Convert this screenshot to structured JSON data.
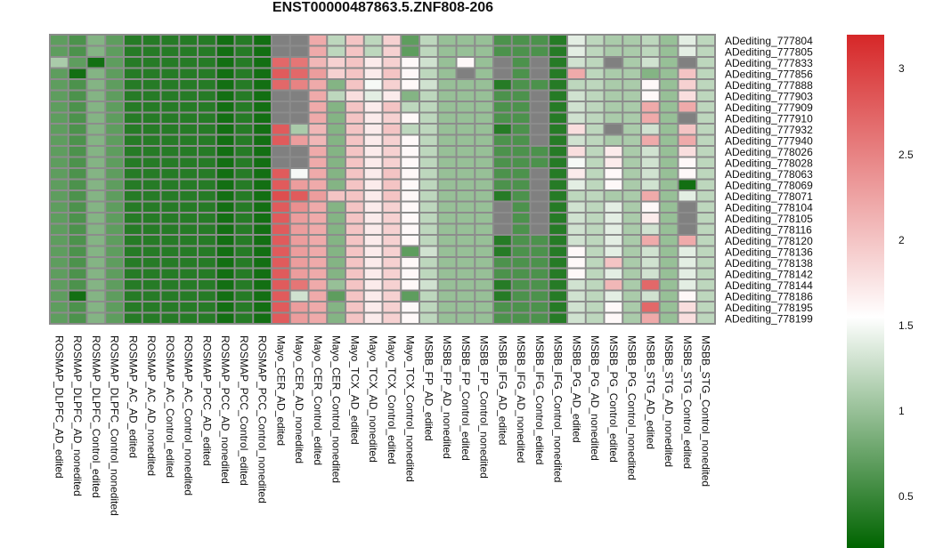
{
  "title": "ENST00000487863.5.ZNF808-206",
  "chart_data": {
    "type": "heatmap",
    "title": "ENST00000487863.5.ZNF808-206",
    "columns": [
      "ROSMAP_DLPFC_AD_edited",
      "ROSMAP_DLPFC_AD_nonedited",
      "ROSMAP_DLPFC_Control_edited",
      "ROSMAP_DLPFC_Control_nonedited",
      "ROSMAP_AC_AD_edited",
      "ROSMAP_AC_AD_nonedited",
      "ROSMAP_AC_Control_edited",
      "ROSMAP_AC_Control_nonedited",
      "ROSMAP_PCC_AD_edited",
      "ROSMAP_PCC_AD_nonedited",
      "ROSMAP_PCC_Control_edited",
      "ROSMAP_PCC_Control_nonedited",
      "Mayo_CER_AD_edited",
      "Mayo_CER_AD_nonedited",
      "Mayo_CER_Control_edited",
      "Mayo_CER_Control_nonedited",
      "Mayo_TCX_AD_edited",
      "Mayo_TCX_AD_nonedited",
      "Mayo_TCX_Control_edited",
      "Mayo_TCX_Control_nonedited",
      "MSBB_FP_AD_edited",
      "MSBB_FP_AD_nonedited",
      "MSBB_FP_Control_edited",
      "MSBB_FP_Control_nonedited",
      "MSBB_IFG_AD_edited",
      "MSBB_IFG_AD_nonedited",
      "MSBB_IFG_Control_edited",
      "MSBB_IFG_Control_nonedited",
      "MSBB_PG_AD_edited",
      "MSBB_PG_AD_nonedited",
      "MSBB_PG_Control_edited",
      "MSBB_PG_Control_nonedited",
      "MSBB_STG_AD_edited",
      "MSBB_STG_AD_nonedited",
      "MSBB_STG_Control_edited",
      "MSBB_STG_Control_nonedited"
    ],
    "rows": [
      "ADediting_777804",
      "ADediting_777805",
      "ADediting_777833",
      "ADediting_777856",
      "ADediting_777888",
      "ADediting_777903",
      "ADediting_777909",
      "ADediting_777910",
      "ADediting_777932",
      "ADediting_777940",
      "ADediting_778026",
      "ADediting_778028",
      "ADediting_778063",
      "ADediting_778069",
      "ADediting_778071",
      "ADediting_778104",
      "ADediting_778105",
      "ADediting_778116",
      "ADediting_778120",
      "ADediting_778136",
      "ADediting_778138",
      "ADediting_778142",
      "ADediting_778144",
      "ADediting_778186",
      "ADediting_778195",
      "ADediting_778199"
    ],
    "values": [
      [
        0.7,
        0.6,
        0.9,
        0.7,
        0.4,
        0.4,
        0.4,
        0.4,
        0.4,
        0.3,
        0.4,
        0.3,
        null,
        null,
        2.2,
        1.2,
        2.0,
        1.2,
        1.9,
        0.7,
        1.2,
        1.0,
        1.0,
        1.0,
        0.6,
        0.6,
        0.6,
        0.4,
        1.4,
        1.2,
        1.1,
        1.1,
        1.2,
        1.0,
        1.4,
        1.2
      ],
      [
        0.7,
        0.6,
        0.9,
        0.7,
        0.4,
        0.4,
        0.4,
        0.4,
        0.4,
        0.3,
        0.4,
        0.3,
        null,
        null,
        2.2,
        1.2,
        2.0,
        1.2,
        1.9,
        0.7,
        1.2,
        1.0,
        1.0,
        1.0,
        0.6,
        0.6,
        0.6,
        0.4,
        1.4,
        1.2,
        1.1,
        1.1,
        1.2,
        1.0,
        1.4,
        1.2
      ],
      [
        1.1,
        0.7,
        0.3,
        0.7,
        0.4,
        0.4,
        0.4,
        0.4,
        0.4,
        0.3,
        0.4,
        0.3,
        2.7,
        2.6,
        2.1,
        1.9,
        2.0,
        1.7,
        1.9,
        1.6,
        1.3,
        1.0,
        1.6,
        1.0,
        null,
        0.6,
        null,
        0.4,
        1.3,
        1.2,
        null,
        1.1,
        1.3,
        1.0,
        null,
        1.2
      ],
      [
        0.7,
        0.3,
        0.9,
        0.7,
        0.4,
        0.4,
        0.4,
        0.4,
        0.4,
        0.3,
        0.4,
        0.3,
        2.8,
        2.7,
        2.3,
        1.9,
        2.0,
        1.7,
        2.0,
        1.6,
        1.2,
        1.0,
        null,
        1.0,
        null,
        0.6,
        null,
        0.4,
        2.2,
        1.2,
        1.1,
        1.1,
        0.9,
        1.0,
        2.0,
        1.2
      ],
      [
        0.7,
        0.6,
        0.9,
        0.7,
        0.4,
        0.4,
        0.4,
        0.4,
        0.4,
        0.3,
        0.4,
        0.3,
        2.7,
        2.5,
        2.2,
        0.9,
        2.0,
        1.5,
        1.9,
        1.6,
        1.3,
        1.0,
        1.0,
        1.0,
        0.4,
        0.6,
        0.6,
        0.4,
        1.2,
        1.2,
        1.1,
        1.1,
        1.6,
        1.0,
        1.9,
        1.2
      ],
      [
        0.7,
        0.6,
        0.9,
        0.7,
        0.4,
        0.4,
        0.4,
        0.4,
        0.4,
        0.3,
        0.4,
        0.3,
        null,
        null,
        2.2,
        1.2,
        1.8,
        1.4,
        1.7,
        0.9,
        1.2,
        1.0,
        1.0,
        1.0,
        0.6,
        0.6,
        null,
        0.4,
        1.3,
        1.2,
        1.1,
        1.1,
        1.6,
        1.0,
        1.8,
        1.2
      ],
      [
        0.7,
        0.6,
        0.9,
        0.7,
        0.4,
        0.4,
        0.4,
        0.4,
        0.4,
        0.3,
        0.4,
        0.3,
        null,
        null,
        2.2,
        0.9,
        2.0,
        1.7,
        2.0,
        1.2,
        1.2,
        1.0,
        1.0,
        1.0,
        0.6,
        0.6,
        null,
        0.4,
        1.3,
        1.2,
        1.1,
        1.1,
        2.2,
        1.0,
        2.2,
        1.2
      ],
      [
        0.7,
        0.6,
        0.9,
        0.7,
        0.4,
        0.4,
        0.4,
        0.4,
        0.4,
        0.3,
        0.4,
        0.3,
        null,
        null,
        2.2,
        0.9,
        2.0,
        1.7,
        1.9,
        1.6,
        1.2,
        1.0,
        1.0,
        1.0,
        0.6,
        0.6,
        null,
        0.4,
        1.3,
        1.2,
        1.1,
        1.1,
        2.2,
        1.0,
        null,
        1.2
      ],
      [
        0.7,
        0.6,
        0.9,
        0.7,
        0.4,
        0.4,
        0.4,
        0.4,
        0.4,
        0.3,
        0.4,
        0.3,
        2.8,
        1.1,
        2.1,
        0.9,
        2.0,
        1.7,
        2.0,
        1.2,
        1.2,
        1.0,
        1.0,
        1.0,
        0.4,
        0.6,
        null,
        0.4,
        1.8,
        1.2,
        null,
        1.1,
        1.3,
        1.0,
        2.0,
        1.2
      ],
      [
        0.7,
        0.6,
        0.9,
        0.7,
        0.4,
        0.4,
        0.4,
        0.4,
        0.4,
        0.3,
        0.4,
        0.3,
        2.8,
        2.3,
        2.1,
        0.9,
        2.0,
        1.7,
        1.9,
        1.6,
        1.2,
        1.0,
        1.0,
        1.0,
        0.6,
        0.6,
        null,
        0.4,
        1.3,
        1.2,
        1.1,
        1.1,
        2.2,
        1.0,
        2.2,
        1.2
      ],
      [
        0.7,
        0.6,
        0.9,
        0.7,
        0.4,
        0.4,
        0.4,
        0.4,
        0.4,
        0.3,
        0.4,
        0.3,
        null,
        null,
        2.2,
        0.9,
        2.0,
        1.7,
        1.9,
        1.6,
        1.2,
        1.0,
        1.0,
        1.0,
        0.6,
        0.6,
        0.6,
        0.4,
        1.8,
        1.2,
        1.7,
        1.1,
        1.3,
        1.0,
        1.8,
        1.2
      ],
      [
        0.7,
        0.6,
        0.9,
        0.7,
        0.4,
        0.4,
        0.4,
        0.4,
        0.4,
        0.3,
        0.4,
        0.3,
        null,
        null,
        2.2,
        0.9,
        2.0,
        1.7,
        1.9,
        1.6,
        1.2,
        1.0,
        1.0,
        1.0,
        0.6,
        0.6,
        0.6,
        0.4,
        1.5,
        1.2,
        1.7,
        1.1,
        1.3,
        1.0,
        1.6,
        1.2
      ],
      [
        0.7,
        0.6,
        0.9,
        0.7,
        0.4,
        0.4,
        0.4,
        0.4,
        0.4,
        0.3,
        0.4,
        0.3,
        2.8,
        1.5,
        2.2,
        0.9,
        2.0,
        1.7,
        2.0,
        1.6,
        1.2,
        1.0,
        1.0,
        1.0,
        0.6,
        0.6,
        null,
        0.4,
        1.7,
        1.2,
        1.6,
        1.1,
        1.3,
        1.0,
        1.6,
        1.2
      ],
      [
        0.7,
        0.6,
        0.9,
        0.7,
        0.4,
        0.4,
        0.4,
        0.4,
        0.4,
        0.3,
        0.4,
        0.3,
        2.8,
        2.3,
        2.2,
        0.9,
        2.0,
        1.7,
        2.0,
        1.6,
        1.2,
        1.0,
        1.0,
        1.0,
        0.6,
        0.6,
        null,
        0.4,
        1.4,
        1.2,
        1.6,
        1.1,
        1.3,
        1.0,
        0.3,
        1.2
      ],
      [
        0.7,
        0.6,
        0.9,
        0.7,
        0.4,
        0.4,
        0.4,
        0.4,
        0.4,
        0.3,
        0.4,
        0.3,
        2.9,
        2.8,
        2.3,
        2.0,
        2.0,
        1.7,
        2.0,
        1.6,
        1.2,
        1.0,
        1.0,
        1.0,
        0.4,
        0.6,
        null,
        0.4,
        1.2,
        1.2,
        1.1,
        1.1,
        2.2,
        1.0,
        1.4,
        1.2
      ],
      [
        0.7,
        0.6,
        0.9,
        0.7,
        0.4,
        0.4,
        0.4,
        0.4,
        0.4,
        0.3,
        0.4,
        0.3,
        2.8,
        2.4,
        2.2,
        0.9,
        2.0,
        1.7,
        1.9,
        1.6,
        1.2,
        1.0,
        1.0,
        1.0,
        null,
        0.6,
        null,
        0.4,
        1.3,
        1.2,
        1.4,
        1.1,
        1.6,
        1.0,
        null,
        1.2
      ],
      [
        0.7,
        0.6,
        0.9,
        0.7,
        0.4,
        0.4,
        0.4,
        0.4,
        0.4,
        0.3,
        0.4,
        0.3,
        2.8,
        2.3,
        2.2,
        0.9,
        2.0,
        1.7,
        1.9,
        1.6,
        1.2,
        1.0,
        1.0,
        1.0,
        null,
        0.6,
        null,
        0.4,
        1.3,
        1.2,
        1.4,
        1.1,
        1.7,
        1.0,
        null,
        1.2
      ],
      [
        0.7,
        0.6,
        0.9,
        0.7,
        0.4,
        0.4,
        0.4,
        0.4,
        0.4,
        0.3,
        0.4,
        0.3,
        2.8,
        2.3,
        2.2,
        0.9,
        2.0,
        1.7,
        1.9,
        1.6,
        1.2,
        1.0,
        1.0,
        1.0,
        null,
        0.6,
        null,
        0.4,
        1.3,
        1.2,
        1.4,
        1.1,
        1.3,
        1.0,
        null,
        1.2
      ],
      [
        0.7,
        0.6,
        0.9,
        0.7,
        0.4,
        0.4,
        0.4,
        0.4,
        0.4,
        0.3,
        0.4,
        0.3,
        2.8,
        2.3,
        2.2,
        0.9,
        2.0,
        1.7,
        1.9,
        1.6,
        1.2,
        1.0,
        1.0,
        1.0,
        0.4,
        0.6,
        0.6,
        0.4,
        1.3,
        1.2,
        1.4,
        1.1,
        2.2,
        1.0,
        2.2,
        1.2
      ],
      [
        0.7,
        0.6,
        0.9,
        0.7,
        0.4,
        0.4,
        0.4,
        0.4,
        0.4,
        0.3,
        0.4,
        0.3,
        2.8,
        2.3,
        2.2,
        0.9,
        2.0,
        1.7,
        1.9,
        0.7,
        1.3,
        1.0,
        1.0,
        1.0,
        0.4,
        0.6,
        0.6,
        0.4,
        1.6,
        1.2,
        1.4,
        1.1,
        1.3,
        1.0,
        1.4,
        1.2
      ],
      [
        0.7,
        0.6,
        0.9,
        0.7,
        0.4,
        0.4,
        0.4,
        0.4,
        0.4,
        0.3,
        0.4,
        0.3,
        2.8,
        2.3,
        2.2,
        0.9,
        2.0,
        1.7,
        1.9,
        1.6,
        1.2,
        1.0,
        1.0,
        1.0,
        0.6,
        0.6,
        0.6,
        0.4,
        1.6,
        1.2,
        2.0,
        1.1,
        1.3,
        1.0,
        1.4,
        1.2
      ],
      [
        0.7,
        0.6,
        0.9,
        0.7,
        0.4,
        0.4,
        0.4,
        0.4,
        0.4,
        0.3,
        0.4,
        0.3,
        2.8,
        2.3,
        2.2,
        0.9,
        2.0,
        1.7,
        1.9,
        1.6,
        1.2,
        1.0,
        1.0,
        1.0,
        0.6,
        0.6,
        0.6,
        0.4,
        1.6,
        1.2,
        1.4,
        1.1,
        1.3,
        1.0,
        1.4,
        1.2
      ],
      [
        0.7,
        0.6,
        0.9,
        0.7,
        0.4,
        0.4,
        0.4,
        0.4,
        0.4,
        0.3,
        0.4,
        0.3,
        2.8,
        2.6,
        2.2,
        1.0,
        2.0,
        1.7,
        1.9,
        1.6,
        1.3,
        1.0,
        1.0,
        1.0,
        0.4,
        0.6,
        0.6,
        0.4,
        1.3,
        1.2,
        2.1,
        1.1,
        2.7,
        1.0,
        1.4,
        1.2
      ],
      [
        0.7,
        0.3,
        0.9,
        0.7,
        0.4,
        0.4,
        0.4,
        0.4,
        0.4,
        0.3,
        0.4,
        0.3,
        2.8,
        1.3,
        2.2,
        0.7,
        2.0,
        1.7,
        1.9,
        0.7,
        1.2,
        1.0,
        1.0,
        1.0,
        0.4,
        0.6,
        0.6,
        0.4,
        1.3,
        1.2,
        1.4,
        1.1,
        1.3,
        1.0,
        1.6,
        1.2
      ],
      [
        0.7,
        0.6,
        0.9,
        0.7,
        0.4,
        0.4,
        0.4,
        0.4,
        0.4,
        0.3,
        0.4,
        0.3,
        2.8,
        2.3,
        2.2,
        0.9,
        2.0,
        1.7,
        1.9,
        1.6,
        1.2,
        1.0,
        1.0,
        1.0,
        0.6,
        0.6,
        0.6,
        0.4,
        1.3,
        1.2,
        1.6,
        1.1,
        2.7,
        1.0,
        1.8,
        1.2
      ],
      [
        0.7,
        0.6,
        0.9,
        0.7,
        0.4,
        0.4,
        0.4,
        0.4,
        0.4,
        0.3,
        0.4,
        0.3,
        2.8,
        2.3,
        2.2,
        0.9,
        2.0,
        1.7,
        1.9,
        1.6,
        1.2,
        1.0,
        1.0,
        1.0,
        0.6,
        0.6,
        0.6,
        0.4,
        1.3,
        1.2,
        1.6,
        1.1,
        2.2,
        1.0,
        1.8,
        1.2
      ]
    ],
    "missing_color": "#808080",
    "color_scale": {
      "low": "#006400",
      "mid": "#ffffff",
      "high": "#d62728",
      "min": 0.2,
      "mid_value": 1.55,
      "max": 3.2
    },
    "legend": {
      "position": "right",
      "ticks": [
        3,
        2.5,
        2,
        1.5,
        1,
        0.5
      ],
      "tick_labels": [
        "3",
        "2.5",
        "2",
        "1.5",
        "1",
        "0.5"
      ]
    }
  }
}
